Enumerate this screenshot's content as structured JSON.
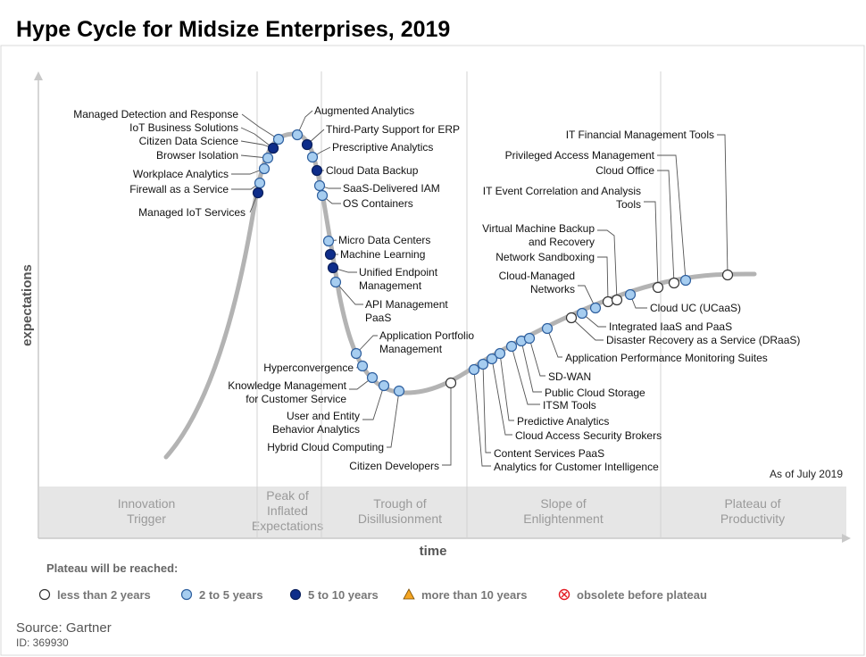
{
  "title": "Hype Cycle for Midsize Enterprises, 2019",
  "source_label": "Source: Gartner",
  "id_label": "ID: 369930",
  "chart_data": {
    "type": "scatter",
    "title": "Hype Cycle for Midsize Enterprises, 2019",
    "xlabel": "time",
    "ylabel": "expectations",
    "as_of": "As of July 2019",
    "phases": [
      [
        "Innovation",
        "Trigger"
      ],
      [
        "Peak of",
        "Inflated",
        "Expectations"
      ],
      [
        "Trough of",
        "Disillusionment"
      ],
      [
        "Slope of",
        "Enlightenment"
      ],
      [
        "Plateau of",
        "Productivity"
      ]
    ],
    "legend_title": "Plateau will be reached:",
    "legend": [
      {
        "key": "lt2",
        "label": "less than 2 years",
        "color": "#ffffff"
      },
      {
        "key": "2to5",
        "label": "2 to 5 years",
        "color": "#a6cdf0"
      },
      {
        "key": "5to10",
        "label": "5 to 10 years",
        "color": "#0e2d8a"
      },
      {
        "key": "gt10",
        "label": "more than 10 years",
        "color": "#f5a623"
      },
      {
        "key": "obs",
        "label": "obsolete before plateau",
        "color": "#e31b23"
      }
    ],
    "technologies": [
      {
        "name": "Managed Detection and Response",
        "category": "2to5"
      },
      {
        "name": "IoT Business Solutions",
        "category": "2to5"
      },
      {
        "name": "Citizen Data Science",
        "category": "5to10"
      },
      {
        "name": "Browser Isolation",
        "category": "2to5"
      },
      {
        "name": "Workplace Analytics",
        "category": "2to5"
      },
      {
        "name": "Firewall as a Service",
        "category": "2to5"
      },
      {
        "name": "Managed IoT Services",
        "category": "5to10"
      },
      {
        "name": "Augmented Analytics",
        "category": "2to5"
      },
      {
        "name": "Third-Party Support for ERP",
        "category": "5to10"
      },
      {
        "name": "Prescriptive Analytics",
        "category": "2to5"
      },
      {
        "name": "Cloud Data Backup",
        "category": "5to10"
      },
      {
        "name": "SaaS-Delivered IAM",
        "category": "2to5"
      },
      {
        "name": "OS Containers",
        "category": "2to5"
      },
      {
        "name": "Micro Data Centers",
        "category": "2to5"
      },
      {
        "name": "Machine Learning",
        "category": "5to10"
      },
      {
        "name": "Unified Endpoint Management",
        "category": "5to10"
      },
      {
        "name": "API Management PaaS",
        "category": "2to5"
      },
      {
        "name": "Application Portfolio Management",
        "category": "2to5"
      },
      {
        "name": "Hyperconvergence",
        "category": "2to5"
      },
      {
        "name": "Knowledge Management for Customer Service",
        "category": "2to5"
      },
      {
        "name": "User and Entity Behavior Analytics",
        "category": "2to5"
      },
      {
        "name": "Hybrid Cloud Computing",
        "category": "2to5"
      },
      {
        "name": "Citizen Developers",
        "category": "lt2"
      },
      {
        "name": "Analytics for Customer Intelligence",
        "category": "2to5"
      },
      {
        "name": "Content Services PaaS",
        "category": "2to5"
      },
      {
        "name": "Cloud Access Security Brokers",
        "category": "2to5"
      },
      {
        "name": "Predictive Analytics",
        "category": "2to5"
      },
      {
        "name": "ITSM Tools",
        "category": "2to5"
      },
      {
        "name": "Public Cloud Storage",
        "category": "2to5"
      },
      {
        "name": "SD-WAN",
        "category": "2to5"
      },
      {
        "name": "Application Performance Monitoring Suites",
        "category": "2to5"
      },
      {
        "name": "Disaster Recovery as a Service (DRaaS)",
        "category": "lt2"
      },
      {
        "name": "Integrated IaaS and PaaS",
        "category": "2to5"
      },
      {
        "name": "Cloud-Managed Networks",
        "category": "2to5"
      },
      {
        "name": "Network Sandboxing",
        "category": "lt2"
      },
      {
        "name": "Virtual Machine Backup and Recovery",
        "category": "lt2"
      },
      {
        "name": "Cloud UC (UCaaS)",
        "category": "2to5"
      },
      {
        "name": "IT Event Correlation and Analysis Tools",
        "category": "lt2"
      },
      {
        "name": "Cloud Office",
        "category": "lt2"
      },
      {
        "name": "Privileged Access Management",
        "category": "2to5"
      },
      {
        "name": "IT Financial Management Tools",
        "category": "lt2"
      }
    ]
  }
}
